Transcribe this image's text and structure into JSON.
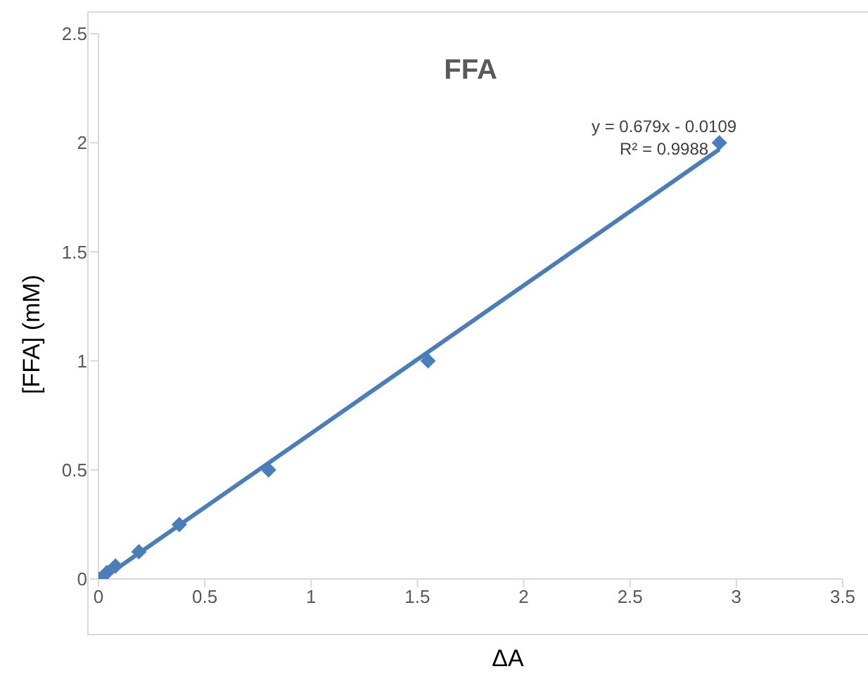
{
  "chart_data": {
    "type": "scatter",
    "title": "FFA",
    "xlabel": "ΔA",
    "ylabel": "[FFA] (mM)",
    "annotations": [
      "y = 0.679x - 0.0109",
      "R² = 0.9988"
    ],
    "series": [
      {
        "type": "line",
        "color": "#4a7ebb",
        "x": [
          0.016,
          2.92
        ],
        "values": [
          0,
          1.97
        ]
      },
      {
        "color": "#4a7ebb",
        "marker": "diamond",
        "x": [
          0,
          0.04,
          0.08,
          0.19,
          0.38,
          0.8,
          1.55,
          2.92
        ],
        "values": [
          0,
          0.03,
          0.06,
          0.125,
          0.25,
          0.5,
          1.0,
          2.0
        ]
      }
    ],
    "grid": false,
    "legend": false,
    "xlim": [
      0,
      3.5
    ],
    "xticks": [
      0,
      0.5,
      1,
      1.5,
      2,
      2.5,
      3,
      3.5
    ],
    "ylim": [
      0,
      2.5
    ],
    "yticks": [
      0,
      0.5,
      1,
      1.5,
      2,
      2.5
    ]
  }
}
